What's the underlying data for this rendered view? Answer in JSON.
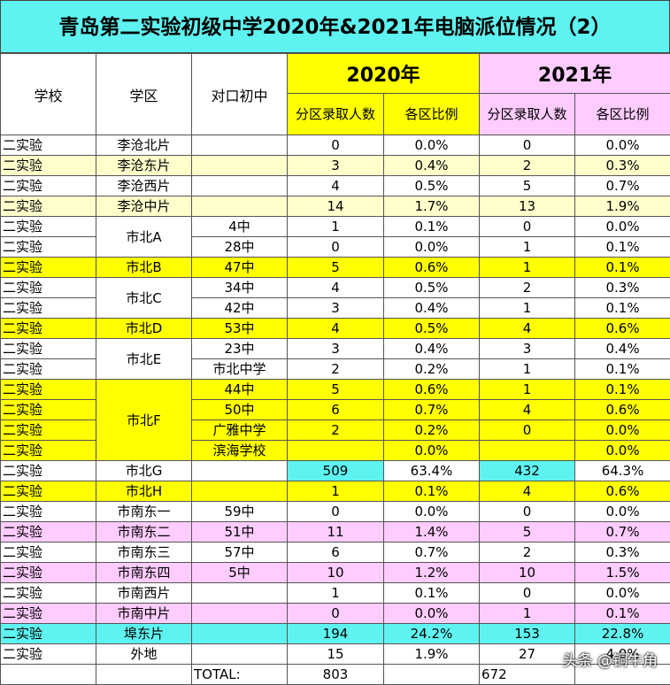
{
  "title": "青岛第二实验初级中学2020年&2021年电脑派位情况（2）",
  "header": {
    "school": "学校",
    "district": "学区",
    "middle": "对口初中",
    "years": [
      {
        "label": "2020年",
        "color": "#ffff00",
        "count": "分区录取人数",
        "ratio": "各区比例"
      },
      {
        "label": "2021年",
        "color": "#ffccff",
        "count": "分区录取人数",
        "ratio": "各区比例"
      }
    ]
  },
  "table": {
    "groups": [
      {
        "district": "李沧北片",
        "color": "#ffffff",
        "rows": [
          {
            "school": "二实验",
            "n": [
              "0",
              "0"
            ],
            "pct": [
              "0.0%",
              "0.0%"
            ]
          }
        ]
      },
      {
        "district": "李沧东片",
        "color": "#ffffcc",
        "rows": [
          {
            "school": "二实验",
            "n": [
              "3",
              "2"
            ],
            "pct": [
              "0.4%",
              "0.3%"
            ]
          }
        ]
      },
      {
        "district": "李沧西片",
        "color": "#ffffff",
        "rows": [
          {
            "school": "二实验",
            "n": [
              "4",
              "5"
            ],
            "pct": [
              "0.5%",
              "0.7%"
            ]
          }
        ]
      },
      {
        "district": "李沧中片",
        "color": "#ffffcc",
        "rows": [
          {
            "school": "二实验",
            "n": [
              "14",
              "13"
            ],
            "pct": [
              "1.7%",
              "1.9%"
            ]
          }
        ]
      },
      {
        "district": "市北A",
        "color": "#ffffff",
        "rows": [
          {
            "school": "二实验",
            "middle": "4中",
            "n": [
              "1",
              "0"
            ],
            "pct": [
              "0.1%",
              "0.0%"
            ]
          },
          {
            "school": "二实验",
            "middle": "28中",
            "n": [
              "0",
              "1"
            ],
            "pct": [
              "0.0%",
              "0.1%"
            ]
          }
        ]
      },
      {
        "district": "市北B",
        "color": "#ffff00",
        "rows": [
          {
            "school": "二实验",
            "middle": "47中",
            "n": [
              "5",
              "1"
            ],
            "pct": [
              "0.6%",
              "0.1%"
            ]
          }
        ]
      },
      {
        "district": "市北C",
        "color": "#ffffff",
        "rows": [
          {
            "school": "二实验",
            "middle": "34中",
            "n": [
              "4",
              "2"
            ],
            "pct": [
              "0.5%",
              "0.3%"
            ]
          },
          {
            "school": "二实验",
            "middle": "42中",
            "n": [
              "3",
              "1"
            ],
            "pct": [
              "0.4%",
              "0.1%"
            ]
          }
        ]
      },
      {
        "district": "市北D",
        "color": "#ffff00",
        "rows": [
          {
            "school": "二实验",
            "middle": "53中",
            "n": [
              "4",
              "4"
            ],
            "pct": [
              "0.5%",
              "0.6%"
            ]
          }
        ]
      },
      {
        "district": "市北E",
        "color": "#ffffff",
        "rows": [
          {
            "school": "二实验",
            "middle": "23中",
            "n": [
              "3",
              "3"
            ],
            "pct": [
              "0.4%",
              "0.4%"
            ]
          },
          {
            "school": "二实验",
            "middle": "市北中学",
            "n": [
              "2",
              "1"
            ],
            "pct": [
              "0.2%",
              "0.1%"
            ]
          }
        ]
      },
      {
        "district": "市北F",
        "color": "#ffff00",
        "rows": [
          {
            "school": "二实验",
            "middle": "44中",
            "n": [
              "5",
              "1"
            ],
            "pct": [
              "0.6%",
              "0.1%"
            ]
          },
          {
            "school": "二实验",
            "middle": "50中",
            "n": [
              "6",
              "4"
            ],
            "pct": [
              "0.7%",
              "0.6%"
            ]
          },
          {
            "school": "二实验",
            "middle": "广雅中学",
            "n": [
              "2",
              "0"
            ],
            "pct": [
              "0.2%",
              "0.0%"
            ]
          },
          {
            "school": "二实验",
            "middle": "滨海学校",
            "n": [
              null,
              null
            ],
            "pct": [
              "0.0%",
              "0.0%"
            ]
          }
        ]
      },
      {
        "district": "市北G",
        "color": "#ffffff",
        "rows": [
          {
            "school": "二实验",
            "n": [
              "509",
              "432"
            ],
            "n_color": "#5ef3f0",
            "pct": [
              "63.4%",
              "64.3%"
            ]
          }
        ]
      },
      {
        "district": "市北H",
        "color": "#ffff00",
        "rows": [
          {
            "school": "二实验",
            "n": [
              "1",
              "4"
            ],
            "pct": [
              "0.1%",
              "0.6%"
            ]
          }
        ]
      },
      {
        "district": "市南东一",
        "color": "#ffffff",
        "rows": [
          {
            "school": "二实验",
            "middle": "59中",
            "n": [
              "0",
              "0"
            ],
            "pct": [
              "0.0%",
              "0.0%"
            ]
          }
        ]
      },
      {
        "district": "市南东二",
        "color": "#ffccff",
        "rows": [
          {
            "school": "二实验",
            "middle": "51中",
            "n": [
              "11",
              "5"
            ],
            "pct": [
              "1.4%",
              "0.7%"
            ]
          }
        ]
      },
      {
        "district": "市南东三",
        "color": "#ffffff",
        "rows": [
          {
            "school": "二实验",
            "middle": "57中",
            "n": [
              "6",
              "2"
            ],
            "pct": [
              "0.7%",
              "0.3%"
            ]
          }
        ]
      },
      {
        "district": "市南东四",
        "color": "#ffccff",
        "rows": [
          {
            "school": "二实验",
            "middle": "5中",
            "n": [
              "10",
              "10"
            ],
            "pct": [
              "1.2%",
              "1.5%"
            ]
          }
        ]
      },
      {
        "district": "市南西片",
        "color": "#ffffff",
        "rows": [
          {
            "school": "二实验",
            "n": [
              "1",
              "0"
            ],
            "pct": [
              "0.1%",
              "0.0%"
            ]
          }
        ]
      },
      {
        "district": "市南中片",
        "color": "#ffccff",
        "rows": [
          {
            "school": "二实验",
            "n": [
              "0",
              "1"
            ],
            "pct": [
              "0.0%",
              "0.1%"
            ]
          }
        ]
      },
      {
        "district": "埠东片",
        "color": "#5ef3f0",
        "rows": [
          {
            "school": "二实验",
            "n": [
              "194",
              "153"
            ],
            "pct": [
              "24.2%",
              "22.8%"
            ]
          }
        ]
      },
      {
        "district": "外地",
        "color": "#ffffff",
        "rows": [
          {
            "school": "二实验",
            "n": [
              "15",
              "27"
            ],
            "pct": [
              "1.9%",
              "4.0%"
            ]
          }
        ]
      }
    ],
    "total": {
      "label": "TOTAL:",
      "values": [
        "803",
        "672"
      ]
    }
  },
  "watermark": "头条 @铜牛角"
}
